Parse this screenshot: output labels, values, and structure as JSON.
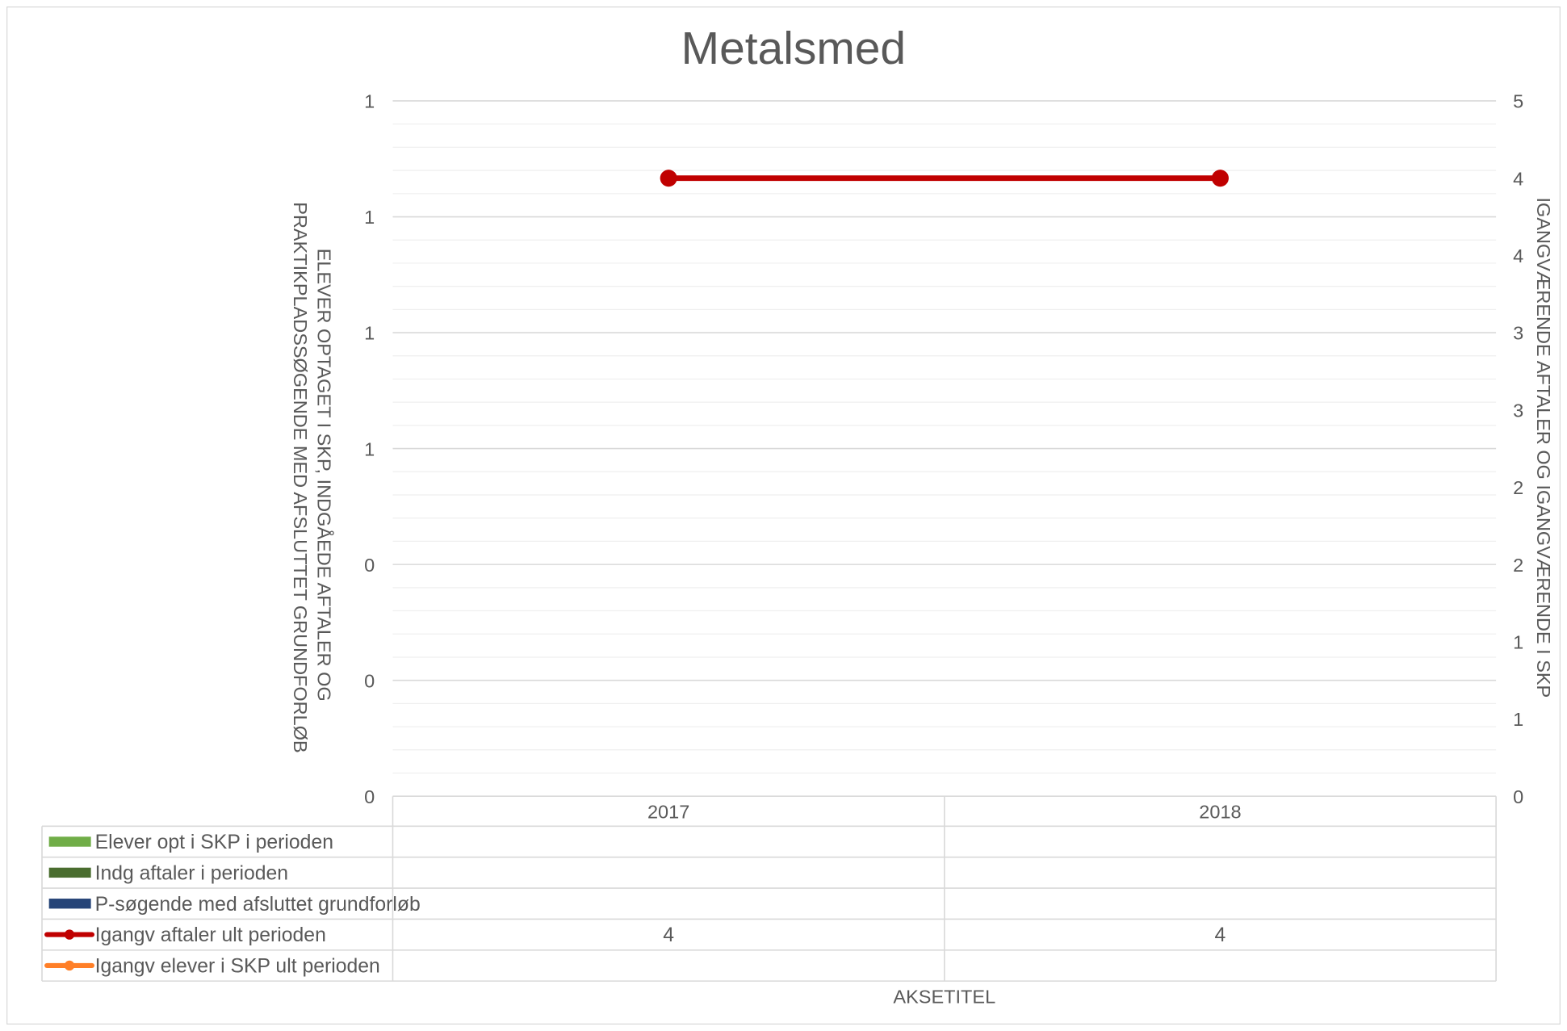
{
  "chart_data": {
    "type": "line",
    "title": "Metalsmed",
    "xlabel": "AKSETITEL",
    "ylabel_left": "ELEVER OPTAGET I SKP, INDGÅEDE AFTALER OG PRAKTIKPLADSSØGENDE MED AFSLUTTET GRUNDFORLØB",
    "ylabel_right": "IGANGVÆRENDE AFTALER OG IGANGVÆRENDE I SKP",
    "categories": [
      "2017",
      "2018"
    ],
    "y_left_ticks": [
      "0",
      "0",
      "0",
      "1",
      "1",
      "1",
      "1"
    ],
    "y_right_ticks": [
      "0",
      "1",
      "1",
      "2",
      "2",
      "3",
      "3",
      "4",
      "4",
      "5"
    ],
    "ylim_left": [
      0,
      1.2
    ],
    "ylim_right": [
      0,
      4.5
    ],
    "grid": true,
    "series": [
      {
        "name": "Elever opt i SKP i perioden",
        "type": "bar",
        "axis": "left",
        "color": "#70ad47",
        "values": [
          null,
          null
        ]
      },
      {
        "name": "Indg aftaler i perioden",
        "type": "bar",
        "axis": "left",
        "color": "#4a6d2f",
        "values": [
          null,
          null
        ]
      },
      {
        "name": "P-søgende med afsluttet grundforløb",
        "type": "bar",
        "axis": "left",
        "color": "#264478",
        "values": [
          null,
          null
        ]
      },
      {
        "name": "Igangv aftaler ult perioden",
        "type": "line",
        "axis": "right",
        "color": "#c00000",
        "values": [
          4,
          4
        ]
      },
      {
        "name": "Igangv elever i SKP ult perioden",
        "type": "line",
        "axis": "right",
        "color": "#ff7f27",
        "values": [
          null,
          null
        ]
      }
    ],
    "table": {
      "rows": [
        [
          "",
          ""
        ],
        [
          "",
          ""
        ],
        [
          "",
          ""
        ],
        [
          "4",
          "4"
        ],
        [
          "",
          ""
        ]
      ]
    }
  }
}
